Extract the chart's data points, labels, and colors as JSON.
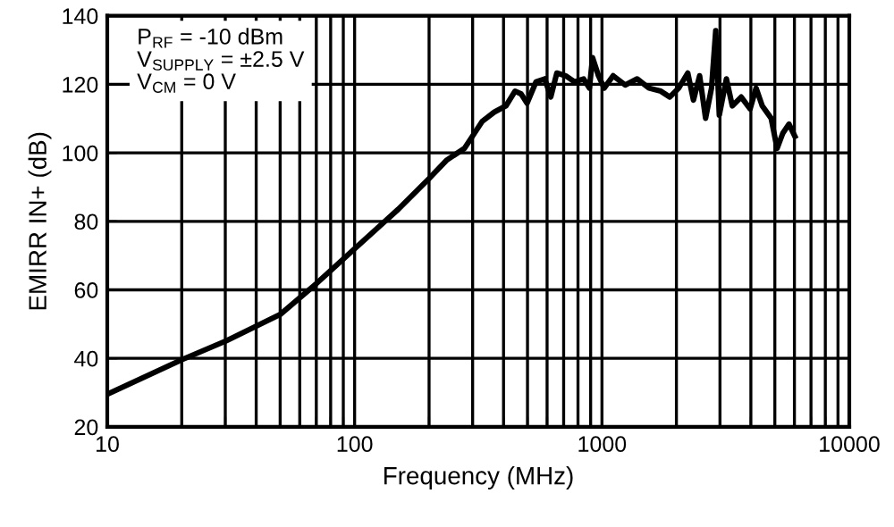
{
  "chart_data": {
    "type": "line",
    "xlabel": "Frequency (MHz)",
    "ylabel": "EMIRR IN+ (dB)",
    "annotations": [
      "P$_{RF}$ = -10 dBm",
      "V$_{SUPPLY}$ = ±2.5 V",
      "V$_{CM}$ = 0 V"
    ],
    "series": [
      {
        "color": "#000000",
        "x": [
          10,
          20,
          30,
          50,
          70,
          100,
          150,
          200,
          235,
          278,
          328,
          367,
          409,
          445,
          471,
          498,
          541,
          587,
          621,
          657,
          713,
          776,
          843,
          890,
          916,
          968,
          1021,
          1110,
          1241,
          1387,
          1549,
          1730,
          1880,
          2043,
          2223,
          2344,
          2483,
          2624,
          2773,
          2884,
          2981,
          3185,
          3365,
          3656,
          3972,
          4198,
          4446,
          4831,
          5105,
          5383,
          5702,
          6026
        ],
        "values": [
          29.5,
          39.6,
          45,
          52.8,
          61.8,
          72,
          83.5,
          92.5,
          97.8,
          101.3,
          109.2,
          111.9,
          113.7,
          118,
          117.2,
          114.5,
          120.7,
          121.6,
          116.3,
          123.3,
          122.5,
          120.7,
          121.6,
          118.9,
          127.8,
          122.5,
          118.9,
          122.5,
          119.8,
          121.6,
          118.9,
          118,
          116.3,
          118.9,
          123.3,
          115.4,
          122.5,
          110.1,
          118.9,
          135.7,
          111,
          121.6,
          113.7,
          116.3,
          112.8,
          118.9,
          113.7,
          110.1,
          101.3,
          105.7,
          108.4,
          104.8
        ]
      }
    ],
    "log": "x",
    "xlim": [
      10,
      10000
    ],
    "xticks": [
      10,
      {
        "value": 20,
        "label": null
      },
      {
        "value": 30,
        "label": null
      },
      {
        "value": 40,
        "label": null
      },
      {
        "value": 50,
        "label": null
      },
      {
        "value": 60,
        "label": null
      },
      {
        "value": 70,
        "label": null
      },
      {
        "value": 80,
        "label": null
      },
      {
        "value": 90,
        "label": null
      },
      100,
      {
        "value": 200,
        "label": null
      },
      {
        "value": 300,
        "label": null
      },
      {
        "value": 400,
        "label": null
      },
      {
        "value": 500,
        "label": null
      },
      {
        "value": 600,
        "label": null
      },
      {
        "value": 700,
        "label": null
      },
      {
        "value": 800,
        "label": null
      },
      {
        "value": 900,
        "label": null
      },
      1000,
      {
        "value": 2000,
        "label": null
      },
      {
        "value": 3000,
        "label": null
      },
      {
        "value": 4000,
        "label": null
      },
      {
        "value": 5000,
        "label": null
      },
      {
        "value": 6000,
        "label": null
      },
      {
        "value": 7000,
        "label": null
      },
      {
        "value": 8000,
        "label": null
      },
      {
        "value": 9000,
        "label": null
      },
      10000
    ],
    "ylim": [
      20,
      140
    ],
    "yticks": [
      20,
      40,
      60,
      80,
      100,
      120,
      140
    ],
    "grid": true,
    "marker": "none",
    "line_style": "solid"
  }
}
